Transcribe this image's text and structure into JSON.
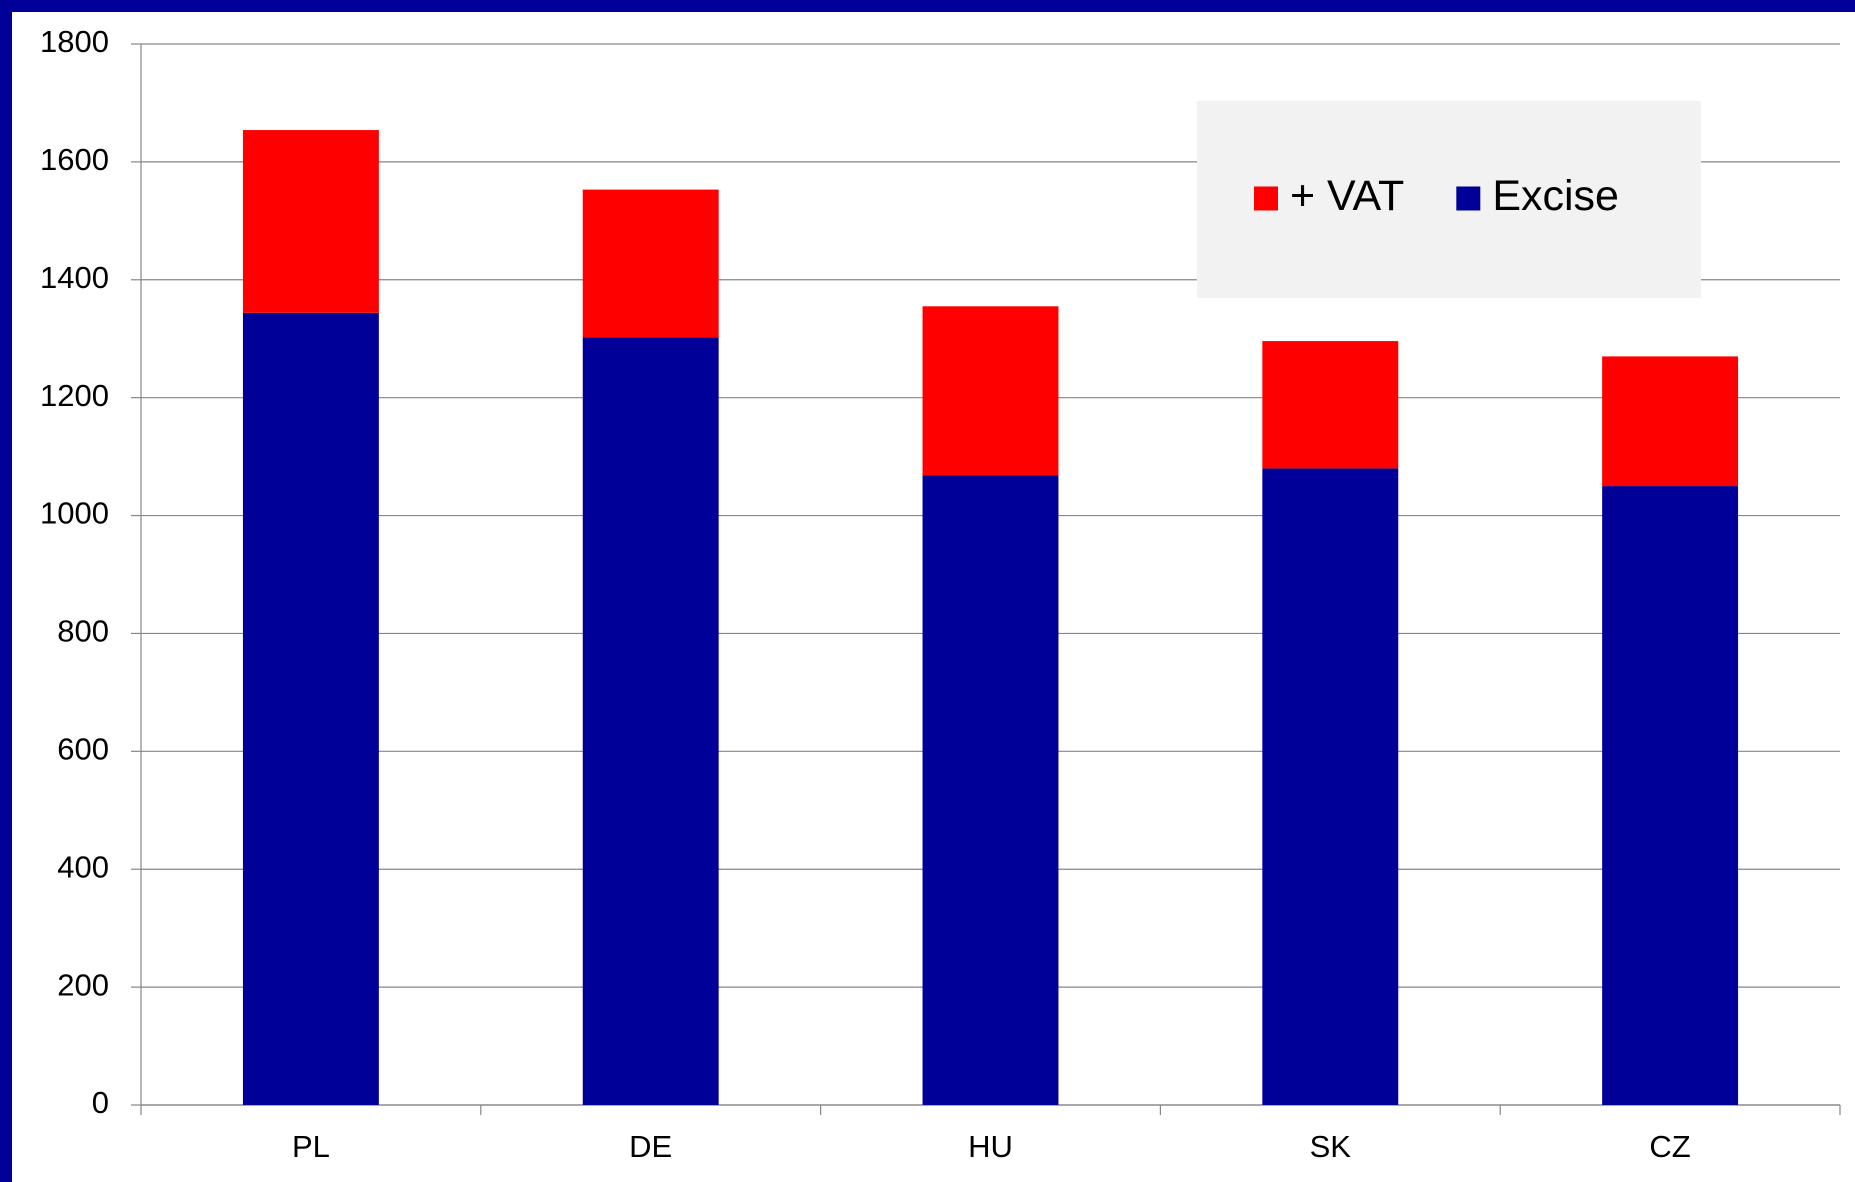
{
  "chart_data": {
    "type": "stacked_bar",
    "categories": [
      "PL",
      "DE",
      "HU",
      "SK",
      "CZ"
    ],
    "series": [
      {
        "name": "Excise",
        "color": "#000099",
        "values": [
          1344,
          1302,
          1068,
          1080,
          1050
        ]
      },
      {
        "name": "+ VAT",
        "color": "#ff0000",
        "values": [
          310,
          251,
          287,
          216,
          220
        ]
      }
    ],
    "ylim": [
      0,
      1800
    ],
    "yticks": [
      0,
      200,
      400,
      600,
      800,
      1000,
      1200,
      1400,
      1600,
      1800
    ],
    "grid": true,
    "legend": "top-right"
  }
}
